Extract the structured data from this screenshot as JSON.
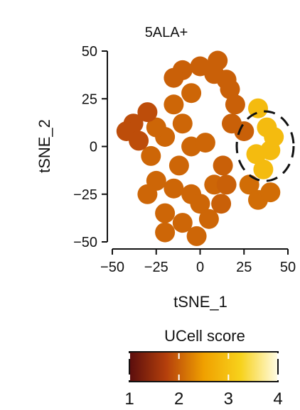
{
  "chart_data": {
    "type": "scatter",
    "title": "5ALA+",
    "xlabel": "tSNE_1",
    "ylabel": "tSNE_2",
    "xlim": [
      -50,
      50
    ],
    "ylim": [
      -50,
      50
    ],
    "x_ticks": [
      -50,
      -25,
      0,
      25,
      50
    ],
    "y_ticks": [
      -50,
      -25,
      0,
      25,
      50
    ],
    "x_tick_labels": [
      "−50",
      "−25",
      "0",
      "25",
      "50"
    ],
    "y_tick_labels": [
      "−50",
      "−25",
      "0",
      "25",
      "50"
    ],
    "grid": false,
    "colorbar": {
      "title": "UCell score",
      "ticks": [
        1,
        2,
        3,
        4
      ],
      "tick_labels": [
        "1",
        "2",
        "3",
        "4"
      ],
      "range": [
        1,
        4
      ],
      "colors": [
        "#5a0d0d",
        "#b5400c",
        "#f0a000",
        "#f7d21c",
        "#fffce6"
      ]
    },
    "annotation": {
      "type": "dashed-ellipse",
      "center": [
        38,
        0
      ],
      "radius_x": 13,
      "radius_y": 18
    },
    "clusters": [
      {
        "points": [
          [
            -25,
            -18
          ],
          [
            -15,
            -22
          ],
          [
            -5,
            -25
          ],
          [
            0,
            -30
          ],
          [
            -20,
            -35
          ],
          [
            -10,
            -40
          ],
          [
            5,
            -38
          ],
          [
            -28,
            -5
          ],
          [
            -20,
            5
          ],
          [
            -5,
            0
          ],
          [
            -10,
            12
          ],
          [
            -15,
            22
          ],
          [
            -5,
            28
          ],
          [
            -20,
            -45
          ],
          [
            -2,
            -47
          ],
          [
            8,
            -20
          ],
          [
            3,
            2
          ],
          [
            -30,
            -25
          ],
          [
            -12,
            -10
          ],
          [
            -25,
            10
          ]
        ],
        "score": 2.05
      },
      {
        "points": [
          [
            -38,
            12
          ],
          [
            -30,
            18
          ],
          [
            -42,
            8
          ],
          [
            -35,
            3
          ]
        ],
        "score": 1.85
      },
      {
        "points": [
          [
            -10,
            40
          ],
          [
            0,
            42
          ],
          [
            8,
            38
          ],
          [
            15,
            35
          ],
          [
            -15,
            36
          ],
          [
            10,
            45
          ]
        ],
        "score": 2.0
      },
      {
        "points": [
          [
            17,
            30
          ],
          [
            20,
            22
          ],
          [
            18,
            12
          ],
          [
            25,
            8
          ]
        ],
        "score": 2.0
      },
      {
        "points": [
          [
            33,
            20
          ],
          [
            38,
            10
          ],
          [
            40,
            -2
          ],
          [
            36,
            -12
          ],
          [
            42,
            5
          ],
          [
            32,
            -4
          ]
        ],
        "score": 2.9
      },
      {
        "points": [
          [
            28,
            -20
          ],
          [
            33,
            -28
          ],
          [
            40,
            -24
          ]
        ],
        "score": 2.1
      },
      {
        "points": [
          [
            12,
            -30
          ],
          [
            15,
            -20
          ],
          [
            13,
            -10
          ]
        ],
        "score": 2.0
      }
    ]
  }
}
